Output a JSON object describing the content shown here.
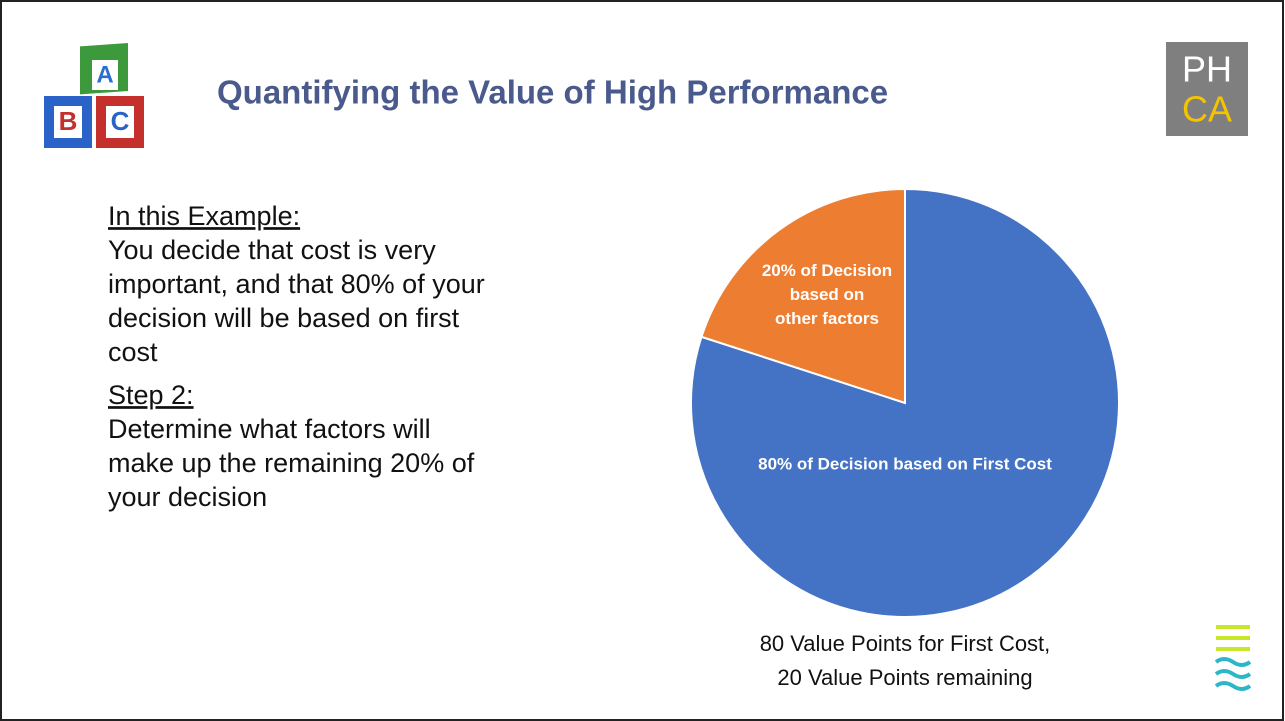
{
  "title": "Quantifying the Value of High Performance",
  "logo": {
    "top": "PH",
    "bottom": "CA"
  },
  "sections": [
    {
      "heading": "In this Example:",
      "lines": [
        "You decide that cost is very",
        "important, and that 80% of your",
        "decision will be based on first",
        "cost"
      ]
    },
    {
      "heading": "Step 2:",
      "lines": [
        "Determine what factors will",
        "make up the remaining 20% of",
        "your decision"
      ]
    }
  ],
  "chart_data": {
    "type": "pie",
    "categories": [
      [
        "20% of Decision",
        "based on",
        "other factors"
      ],
      [
        "80% of Decision based on First Cost"
      ]
    ],
    "values": [
      20,
      80
    ],
    "colors": [
      "#ed7d31",
      "#4472c4"
    ],
    "caption": [
      "80 Value Points for First Cost,",
      "20 Value Points remaining"
    ]
  }
}
